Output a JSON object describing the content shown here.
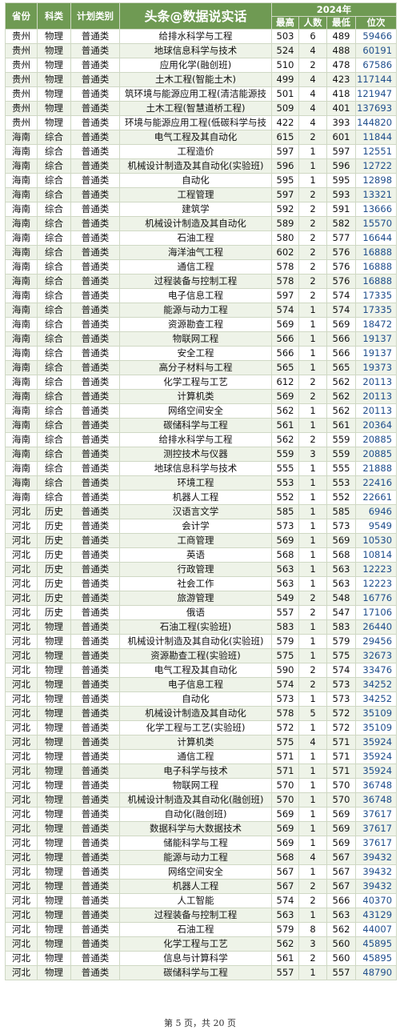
{
  "header": {
    "province": "省份",
    "subject": "科类",
    "plan_type": "计划类别",
    "title": "头条@数据说实话",
    "year": "2024年",
    "max": "最高",
    "count": "人数",
    "min": "最低",
    "rank": "位次"
  },
  "rows": [
    [
      "贵州",
      "物理",
      "普通类",
      "给排水科学与工程",
      "503",
      "6",
      "489",
      "59466"
    ],
    [
      "贵州",
      "物理",
      "普通类",
      "地球信息科学与技术",
      "524",
      "4",
      "488",
      "60191"
    ],
    [
      "贵州",
      "物理",
      "普通类",
      "应用化学(融创班)",
      "510",
      "2",
      "478",
      "67586"
    ],
    [
      "贵州",
      "物理",
      "普通类",
      "土木工程(智能土木)",
      "499",
      "4",
      "423",
      "117144"
    ],
    [
      "贵州",
      "物理",
      "普通类",
      "筑环境与能源应用工程(清洁能源技",
      "501",
      "4",
      "418",
      "121947"
    ],
    [
      "贵州",
      "物理",
      "普通类",
      "土木工程(智慧道桥工程)",
      "509",
      "4",
      "401",
      "137693"
    ],
    [
      "贵州",
      "物理",
      "普通类",
      "环境与能源应用工程(低碳科学与技",
      "422",
      "4",
      "393",
      "144820"
    ],
    [
      "海南",
      "综合",
      "普通类",
      "电气工程及其自动化",
      "615",
      "2",
      "601",
      "11844"
    ],
    [
      "海南",
      "综合",
      "普通类",
      "工程造价",
      "597",
      "1",
      "597",
      "12551"
    ],
    [
      "海南",
      "综合",
      "普通类",
      "机械设计制造及其自动化(实验班)",
      "596",
      "1",
      "596",
      "12722"
    ],
    [
      "海南",
      "综合",
      "普通类",
      "自动化",
      "595",
      "1",
      "595",
      "12898"
    ],
    [
      "海南",
      "综合",
      "普通类",
      "工程管理",
      "597",
      "2",
      "593",
      "13321"
    ],
    [
      "海南",
      "综合",
      "普通类",
      "建筑学",
      "592",
      "2",
      "591",
      "13666"
    ],
    [
      "海南",
      "综合",
      "普通类",
      "机械设计制造及其自动化",
      "589",
      "2",
      "582",
      "15570"
    ],
    [
      "海南",
      "综合",
      "普通类",
      "石油工程",
      "580",
      "2",
      "577",
      "16644"
    ],
    [
      "海南",
      "综合",
      "普通类",
      "海洋油气工程",
      "602",
      "2",
      "576",
      "16888"
    ],
    [
      "海南",
      "综合",
      "普通类",
      "通信工程",
      "578",
      "2",
      "576",
      "16888"
    ],
    [
      "海南",
      "综合",
      "普通类",
      "过程装备与控制工程",
      "578",
      "2",
      "576",
      "16888"
    ],
    [
      "海南",
      "综合",
      "普通类",
      "电子信息工程",
      "597",
      "2",
      "574",
      "17335"
    ],
    [
      "海南",
      "综合",
      "普通类",
      "能源与动力工程",
      "574",
      "1",
      "574",
      "17335"
    ],
    [
      "海南",
      "综合",
      "普通类",
      "资源勘查工程",
      "569",
      "1",
      "569",
      "18472"
    ],
    [
      "海南",
      "综合",
      "普通类",
      "物联网工程",
      "566",
      "1",
      "566",
      "19137"
    ],
    [
      "海南",
      "综合",
      "普通类",
      "安全工程",
      "566",
      "1",
      "566",
      "19137"
    ],
    [
      "海南",
      "综合",
      "普通类",
      "高分子材料与工程",
      "565",
      "1",
      "565",
      "19373"
    ],
    [
      "海南",
      "综合",
      "普通类",
      "化学工程与工艺",
      "612",
      "2",
      "562",
      "20113"
    ],
    [
      "海南",
      "综合",
      "普通类",
      "计算机类",
      "569",
      "2",
      "562",
      "20113"
    ],
    [
      "海南",
      "综合",
      "普通类",
      "网络空间安全",
      "562",
      "1",
      "562",
      "20113"
    ],
    [
      "海南",
      "综合",
      "普通类",
      "碳储科学与工程",
      "561",
      "1",
      "561",
      "20364"
    ],
    [
      "海南",
      "综合",
      "普通类",
      "给排水科学与工程",
      "562",
      "2",
      "559",
      "20885"
    ],
    [
      "海南",
      "综合",
      "普通类",
      "测控技术与仪器",
      "559",
      "3",
      "559",
      "20885"
    ],
    [
      "海南",
      "综合",
      "普通类",
      "地球信息科学与技术",
      "555",
      "1",
      "555",
      "21888"
    ],
    [
      "海南",
      "综合",
      "普通类",
      "环境工程",
      "553",
      "1",
      "553",
      "22416"
    ],
    [
      "海南",
      "综合",
      "普通类",
      "机器人工程",
      "552",
      "1",
      "552",
      "22661"
    ],
    [
      "河北",
      "历史",
      "普通类",
      "汉语言文学",
      "585",
      "1",
      "585",
      "6946"
    ],
    [
      "河北",
      "历史",
      "普通类",
      "会计学",
      "573",
      "1",
      "573",
      "9549"
    ],
    [
      "河北",
      "历史",
      "普通类",
      "工商管理",
      "569",
      "1",
      "569",
      "10530"
    ],
    [
      "河北",
      "历史",
      "普通类",
      "英语",
      "568",
      "1",
      "568",
      "10814"
    ],
    [
      "河北",
      "历史",
      "普通类",
      "行政管理",
      "563",
      "1",
      "563",
      "12223"
    ],
    [
      "河北",
      "历史",
      "普通类",
      "社会工作",
      "563",
      "1",
      "563",
      "12223"
    ],
    [
      "河北",
      "历史",
      "普通类",
      "旅游管理",
      "549",
      "2",
      "548",
      "16776"
    ],
    [
      "河北",
      "历史",
      "普通类",
      "俄语",
      "557",
      "2",
      "547",
      "17106"
    ],
    [
      "河北",
      "物理",
      "普通类",
      "石油工程(实验班)",
      "583",
      "1",
      "583",
      "26440"
    ],
    [
      "河北",
      "物理",
      "普通类",
      "机械设计制造及其自动化(实验班)",
      "579",
      "1",
      "579",
      "29456"
    ],
    [
      "河北",
      "物理",
      "普通类",
      "资源勘查工程(实验班)",
      "575",
      "1",
      "575",
      "32673"
    ],
    [
      "河北",
      "物理",
      "普通类",
      "电气工程及其自动化",
      "590",
      "2",
      "574",
      "33476"
    ],
    [
      "河北",
      "物理",
      "普通类",
      "电子信息工程",
      "574",
      "2",
      "573",
      "34252"
    ],
    [
      "河北",
      "物理",
      "普通类",
      "自动化",
      "573",
      "1",
      "573",
      "34252"
    ],
    [
      "河北",
      "物理",
      "普通类",
      "机械设计制造及其自动化",
      "578",
      "5",
      "572",
      "35109"
    ],
    [
      "河北",
      "物理",
      "普通类",
      "化学工程与工艺(实验班)",
      "572",
      "1",
      "572",
      "35109"
    ],
    [
      "河北",
      "物理",
      "普通类",
      "计算机类",
      "575",
      "4",
      "571",
      "35924"
    ],
    [
      "河北",
      "物理",
      "普通类",
      "通信工程",
      "571",
      "1",
      "571",
      "35924"
    ],
    [
      "河北",
      "物理",
      "普通类",
      "电子科学与技术",
      "571",
      "1",
      "571",
      "35924"
    ],
    [
      "河北",
      "物理",
      "普通类",
      "物联网工程",
      "570",
      "1",
      "570",
      "36748"
    ],
    [
      "河北",
      "物理",
      "普通类",
      "机械设计制造及其自动化(融创班)",
      "570",
      "1",
      "570",
      "36748"
    ],
    [
      "河北",
      "物理",
      "普通类",
      "自动化(融创班)",
      "569",
      "1",
      "569",
      "37617"
    ],
    [
      "河北",
      "物理",
      "普通类",
      "数据科学与大数据技术",
      "569",
      "1",
      "569",
      "37617"
    ],
    [
      "河北",
      "物理",
      "普通类",
      "储能科学与工程",
      "569",
      "1",
      "569",
      "37617"
    ],
    [
      "河北",
      "物理",
      "普通类",
      "能源与动力工程",
      "568",
      "4",
      "567",
      "39432"
    ],
    [
      "河北",
      "物理",
      "普通类",
      "网络空间安全",
      "567",
      "1",
      "567",
      "39432"
    ],
    [
      "河北",
      "物理",
      "普通类",
      "机器人工程",
      "567",
      "2",
      "567",
      "39432"
    ],
    [
      "河北",
      "物理",
      "普通类",
      "人工智能",
      "574",
      "2",
      "566",
      "40370"
    ],
    [
      "河北",
      "物理",
      "普通类",
      "过程装备与控制工程",
      "563",
      "1",
      "563",
      "43129"
    ],
    [
      "河北",
      "物理",
      "普通类",
      "石油工程",
      "579",
      "8",
      "562",
      "44007"
    ],
    [
      "河北",
      "物理",
      "普通类",
      "化学工程与工艺",
      "562",
      "3",
      "560",
      "45895"
    ],
    [
      "河北",
      "物理",
      "普通类",
      "信息与计算科学",
      "561",
      "2",
      "560",
      "45895"
    ],
    [
      "河北",
      "物理",
      "普通类",
      "碳储科学与工程",
      "557",
      "1",
      "557",
      "48790"
    ]
  ],
  "footer": "第 5 页，共 20 页"
}
